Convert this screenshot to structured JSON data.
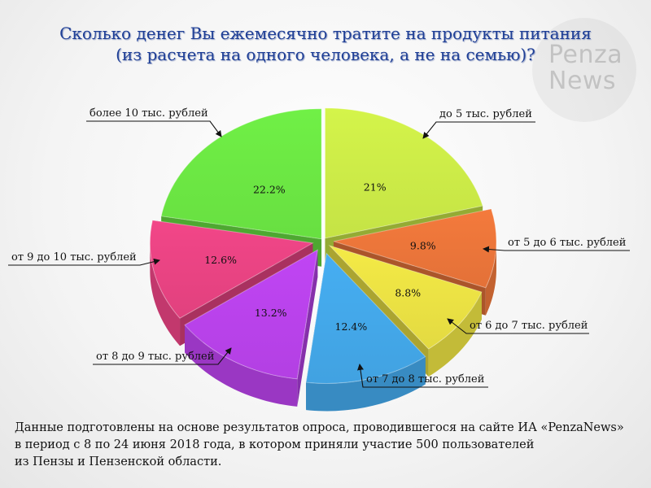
{
  "title": {
    "line1": "Сколько денег Вы ежемесячно тратите на продукты питания",
    "line2": "(из расчета на одного человека, а не на семью)?"
  },
  "watermark": {
    "line1": "Penza",
    "line2": "News"
  },
  "chart_data": {
    "type": "pie",
    "title": "Сколько денег Вы ежемесячно тратите на продукты питания (из расчета на одного человека, а не на семью)?",
    "legend": "none",
    "slices": [
      {
        "label": "до 5 тыс. рублей",
        "value": 21,
        "value_label": "21%",
        "color": "#d4f44a"
      },
      {
        "label": "от 5 до 6 тыс. рублей",
        "value": 9.8,
        "value_label": "9.8%",
        "color": "#f47a3c"
      },
      {
        "label": "от 6 до 7 тыс. рублей",
        "value": 8.8,
        "value_label": "8.8%",
        "color": "#f4ea46"
      },
      {
        "label": "от 7 до 8 тыс. рублей",
        "value": 12.4,
        "value_label": "12.4%",
        "color": "#46aef2"
      },
      {
        "label": "от 8 до 9 тыс. рублей",
        "value": 13.2,
        "value_label": "13.2%",
        "color": "#c045f4"
      },
      {
        "label": "от 9 до 10 тыс. рублей",
        "value": 12.6,
        "value_label": "12.6%",
        "color": "#f24688"
      },
      {
        "label": "более 10 тыс. рублей",
        "value": 22.2,
        "value_label": "22.2%",
        "color": "#70f046"
      }
    ]
  },
  "footnote": {
    "line1": "Данные подготовлены на основе результатов опроса, проводившегося на сайте ИА «PenzaNews»",
    "line2": "в период с 8 по 24 июня 2018 года, в котором приняли участие 500 пользователей",
    "line3": "из Пензы и Пензенской области."
  }
}
